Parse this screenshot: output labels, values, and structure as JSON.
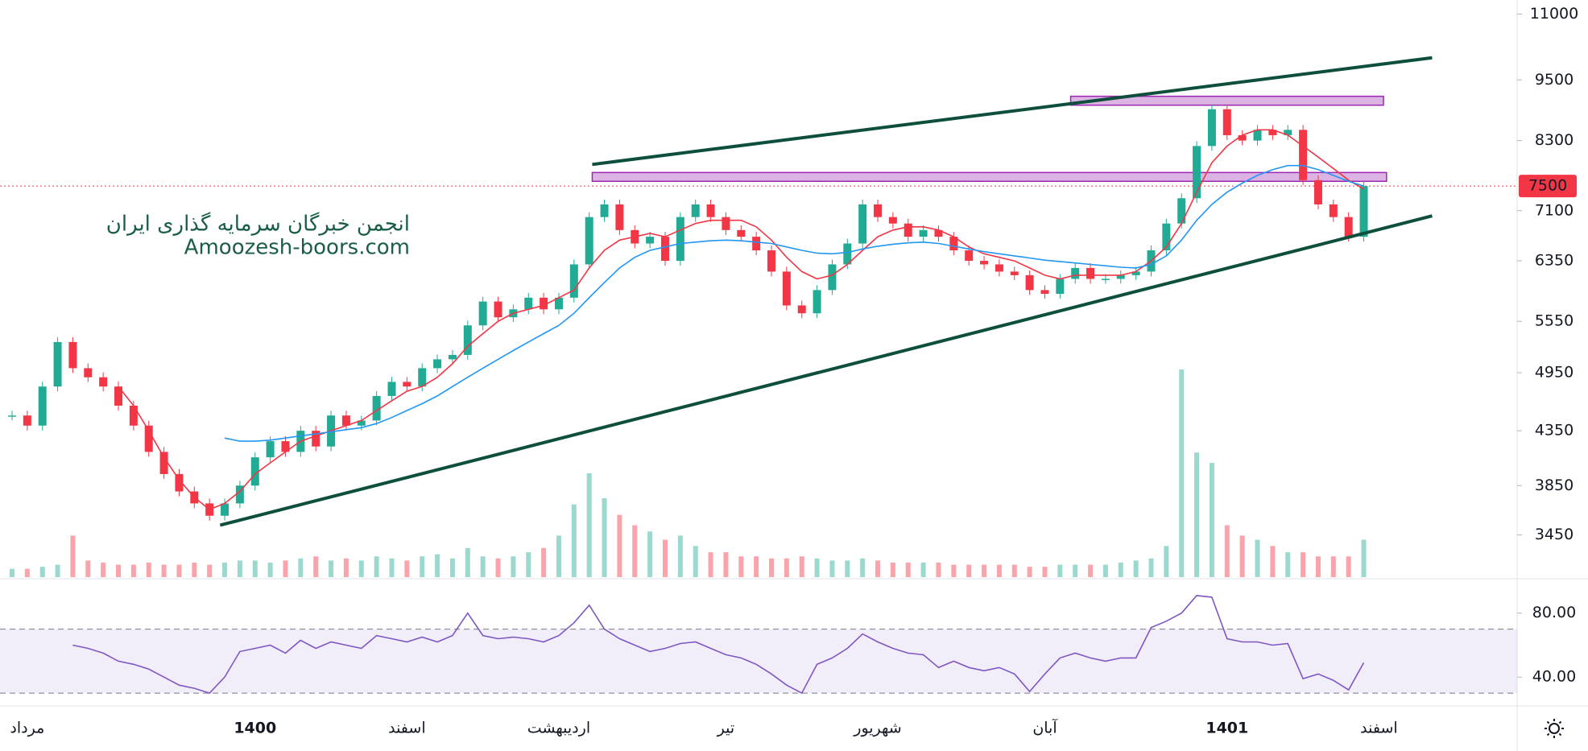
{
  "chart_data": {
    "type": "candlestick",
    "watermark": [
      "انجمن خبرگان سرمایه گذاری ایران",
      "Amoozesh-boors.com"
    ],
    "categories": [
      null,
      "مرداد",
      null,
      null,
      null,
      null,
      null,
      null,
      null,
      null,
      null,
      null,
      null,
      null,
      null,
      null,
      "1400",
      null,
      null,
      null,
      null,
      null,
      null,
      null,
      null,
      null,
      "اسفند",
      null,
      null,
      null,
      null,
      null,
      null,
      null,
      null,
      null,
      "اردیبهشت",
      null,
      null,
      null,
      null,
      null,
      null,
      null,
      null,
      null,
      null,
      "تیر",
      null,
      null,
      null,
      null,
      null,
      null,
      null,
      null,
      null,
      "شهریور",
      null,
      null,
      null,
      null,
      null,
      null,
      null,
      null,
      null,
      null,
      "آبان",
      null,
      null,
      null,
      null,
      null,
      null,
      null,
      null,
      null,
      null,
      null,
      "1401",
      null,
      null,
      null,
      null,
      null,
      null,
      null,
      null,
      null,
      "اسفند",
      null,
      null,
      null,
      null,
      null,
      null,
      null,
      null,
      null
    ],
    "series": [
      {
        "type": "candle",
        "color_up": "#22ab94",
        "color_down": "#f23645",
        "values": [
          4500,
          4400,
          4800,
          5300,
          5000,
          4900,
          4800,
          4600,
          4400,
          4150,
          3950,
          3800,
          3700,
          3600,
          3700,
          3850,
          4100,
          4250,
          4150,
          4350,
          4200,
          4500,
          4400,
          4450,
          4700,
          4850,
          4800,
          5000,
          5100,
          5150,
          5500,
          5800,
          5600,
          5700,
          5850,
          5700,
          5850,
          6300,
          7000,
          7200,
          6800,
          6600,
          6700,
          6350,
          7000,
          7200,
          7000,
          6800,
          6700,
          6500,
          6200,
          5750,
          5650,
          5950,
          6300,
          6600,
          7200,
          7000,
          6900,
          6700,
          6800,
          6700,
          6500,
          6350,
          6300,
          6200,
          6150,
          5950,
          5900,
          6100,
          6250,
          6100,
          6100,
          6150,
          6200,
          6500,
          6900,
          7300,
          8200,
          8900,
          8400,
          8300,
          8500,
          8400,
          8500,
          7600,
          7200,
          7000,
          6700,
          7500,
          null,
          null,
          null,
          null,
          null,
          null,
          null,
          null,
          null,
          null
        ]
      },
      {
        "type": "line",
        "color": "#f23645",
        "values": [
          null,
          null,
          null,
          null,
          null,
          null,
          null,
          4800,
          4600,
          4350,
          4100,
          3900,
          3750,
          3650,
          3700,
          3800,
          3950,
          4050,
          4150,
          4250,
          4300,
          4350,
          4400,
          4450,
          4550,
          4650,
          4750,
          4800,
          4900,
          5050,
          5250,
          5400,
          5550,
          5650,
          5700,
          5750,
          5850,
          5950,
          6250,
          6500,
          6650,
          6700,
          6750,
          6700,
          6800,
          6900,
          6950,
          6950,
          6950,
          6850,
          6650,
          6400,
          6200,
          6100,
          6150,
          6300,
          6500,
          6700,
          6800,
          6850,
          6850,
          6800,
          6700,
          6550,
          6450,
          6400,
          6350,
          6250,
          6150,
          6100,
          6150,
          6150,
          6150,
          6150,
          6200,
          6350,
          6550,
          6900,
          7400,
          7900,
          8200,
          8400,
          8500,
          8500,
          8400,
          8200,
          8000,
          7800,
          7600,
          7450,
          null,
          null,
          null,
          null,
          null,
          null,
          null,
          null,
          null,
          null
        ]
      },
      {
        "type": "line",
        "color": "#2196f3",
        "values": [
          null,
          null,
          null,
          null,
          null,
          null,
          null,
          null,
          null,
          null,
          null,
          null,
          null,
          null,
          4280,
          4250,
          4250,
          4260,
          4280,
          4300,
          4320,
          4340,
          4360,
          4380,
          4420,
          4480,
          4550,
          4620,
          4700,
          4800,
          4900,
          5000,
          5100,
          5200,
          5300,
          5400,
          5500,
          5650,
          5850,
          6050,
          6250,
          6400,
          6500,
          6550,
          6600,
          6620,
          6640,
          6650,
          6640,
          6620,
          6600,
          6550,
          6500,
          6460,
          6450,
          6470,
          6520,
          6560,
          6590,
          6610,
          6620,
          6600,
          6560,
          6520,
          6480,
          6450,
          6420,
          6390,
          6360,
          6340,
          6320,
          6300,
          6280,
          6260,
          6250,
          6300,
          6420,
          6650,
          6950,
          7200,
          7400,
          7550,
          7680,
          7780,
          7850,
          7850,
          7780,
          7680,
          7580,
          7500,
          null,
          null,
          null,
          null,
          null,
          null,
          null,
          null,
          null,
          null
        ]
      }
    ],
    "volume": {
      "ylim": [
        0,
        100
      ],
      "values": [
        4,
        4,
        5,
        6,
        20,
        8,
        7,
        6,
        6,
        7,
        6,
        6,
        7,
        6,
        7,
        8,
        8,
        7,
        8,
        9,
        10,
        8,
        9,
        8,
        10,
        9,
        8,
        10,
        11,
        9,
        14,
        10,
        9,
        10,
        12,
        14,
        20,
        35,
        50,
        38,
        30,
        25,
        22,
        18,
        20,
        15,
        12,
        12,
        10,
        10,
        9,
        9,
        10,
        9,
        8,
        8,
        9,
        8,
        7,
        7,
        7,
        7,
        6,
        6,
        6,
        6,
        6,
        5,
        5,
        6,
        6,
        6,
        6,
        7,
        8,
        9,
        15,
        100,
        60,
        55,
        25,
        20,
        18,
        15,
        12,
        12,
        10,
        10,
        10,
        18,
        null,
        null,
        null,
        null,
        null,
        null,
        null,
        null,
        null,
        null
      ]
    },
    "ylim": [
      3140,
      11350
    ],
    "log_scale": true,
    "yticks": [
      3450,
      3850,
      4350,
      4950,
      5550,
      6350,
      7100,
      8300,
      9500,
      11000
    ],
    "last_price": 7500,
    "last_price_color": "#f23645",
    "trendlines": [
      {
        "color": "#0d4f3c",
        "x": [
          38.2,
          93.5
        ],
        "y": [
          7870,
          9980
        ]
      },
      {
        "color": "#0d4f3c",
        "x": [
          13.7,
          93.5
        ],
        "y": [
          3525,
          7018
        ]
      }
    ],
    "zones": [
      {
        "color": "#9c27b0",
        "x": [
          69.7,
          90.3
        ],
        "y": [
          8980,
          9160
        ]
      },
      {
        "color": "#9c27b0",
        "x": [
          38.2,
          90.5
        ],
        "y": [
          7580,
          7730
        ]
      }
    ],
    "rsi": {
      "color": "#7e57c2",
      "ylim": [
        22,
        101
      ],
      "yticks": [
        {
          "value": 80,
          "label": "80.00"
        },
        {
          "value": 40,
          "label": "40.00"
        }
      ],
      "bands": [
        30,
        70
      ],
      "values": [
        null,
        null,
        null,
        null,
        60,
        58,
        55,
        50,
        48,
        45,
        40,
        35,
        33,
        30,
        40,
        56,
        58,
        60,
        55,
        63,
        58,
        62,
        60,
        58,
        66,
        64,
        62,
        65,
        62,
        66,
        80,
        66,
        64,
        65,
        64,
        62,
        66,
        74,
        85,
        70,
        64,
        60,
        56,
        58,
        61,
        62,
        58,
        54,
        52,
        48,
        42,
        35,
        30,
        48,
        52,
        58,
        67,
        62,
        58,
        55,
        54,
        46,
        50,
        46,
        44,
        46,
        42,
        31,
        42,
        52,
        55,
        52,
        50,
        52,
        52,
        71,
        75,
        80,
        91,
        90,
        64,
        62,
        62,
        60,
        61,
        39,
        42,
        38,
        32,
        49,
        null,
        null,
        null,
        null,
        null,
        null,
        null,
        null,
        null,
        null
      ]
    }
  }
}
